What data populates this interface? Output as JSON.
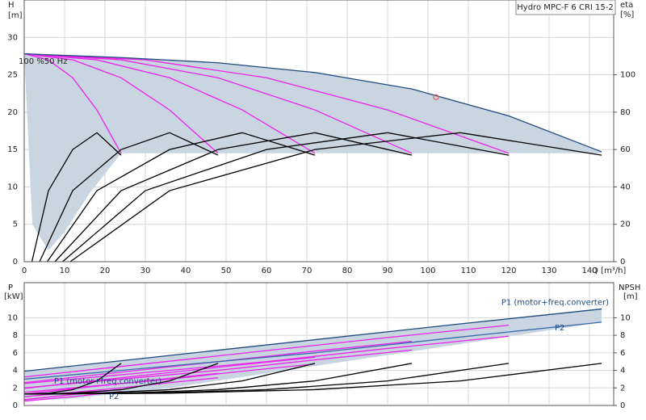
{
  "chart_data": [
    {
      "type": "line",
      "title": "Hydro MPC-F 6 CRI 15-2",
      "y_label": "H",
      "y_unit": "[m]",
      "y2_label": "eta",
      "y2_unit": "[%]",
      "x_label": "Q [m³/h]",
      "annotation": "100 %50 Hz",
      "xlim": [
        0,
        146
      ],
      "xticks": [
        0,
        10,
        20,
        30,
        40,
        50,
        60,
        70,
        80,
        90,
        100,
        110,
        120,
        130,
        140
      ],
      "ylim": [
        0,
        35
      ],
      "yticks": [
        0,
        5,
        10,
        15,
        20,
        25,
        30
      ],
      "y2lim": [
        0,
        140
      ],
      "y2ticks": [
        0,
        20,
        40,
        60,
        80,
        100
      ],
      "grid": true,
      "series": [
        {
          "kind": "area",
          "color": "#c9d5e1",
          "x": [
            0,
            24,
            48,
            72,
            96,
            120,
            143,
            143,
            24,
            16,
            10,
            6,
            2
          ],
          "values": [
            27.8,
            27.3,
            26.6,
            25.3,
            23.1,
            19.5,
            14.7,
            14.5,
            14.5,
            9,
            4,
            1.5,
            5
          ]
        },
        {
          "kind": "line",
          "color": "#ee22ee",
          "x": [
            0,
            6,
            12,
            18,
            24
          ],
          "values": [
            27.8,
            27.0,
            24.6,
            20.3,
            14.5
          ]
        },
        {
          "kind": "line",
          "color": "#ee22ee",
          "x": [
            0,
            12,
            24,
            36,
            48
          ],
          "values": [
            27.8,
            27.0,
            24.6,
            20.3,
            14.5
          ]
        },
        {
          "kind": "line",
          "color": "#ee22ee",
          "x": [
            0,
            18,
            36,
            54,
            72
          ],
          "values": [
            27.8,
            27.0,
            24.6,
            20.3,
            14.5
          ]
        },
        {
          "kind": "line",
          "color": "#ee22ee",
          "x": [
            0,
            24,
            48,
            72,
            96
          ],
          "values": [
            27.8,
            27.0,
            24.6,
            20.3,
            14.5
          ]
        },
        {
          "kind": "line",
          "color": "#ee22ee",
          "x": [
            0,
            30,
            60,
            90,
            120
          ],
          "values": [
            27.8,
            27.0,
            24.6,
            20.3,
            14.5
          ]
        },
        {
          "kind": "line",
          "color": "#1f4a7e",
          "x": [
            0,
            24,
            48,
            72,
            96,
            120,
            143
          ],
          "values": [
            27.8,
            27.3,
            26.6,
            25.3,
            23.1,
            19.5,
            14.7
          ]
        },
        {
          "kind": "line",
          "axis": "y2",
          "color": "#000000",
          "x": [
            1.9,
            6,
            12,
            18,
            24
          ],
          "values": [
            0,
            38,
            60,
            69,
            57
          ]
        },
        {
          "kind": "line",
          "axis": "y2",
          "color": "#000000",
          "x": [
            3.8,
            12,
            24,
            36,
            48
          ],
          "values": [
            0,
            38,
            60,
            69,
            57
          ]
        },
        {
          "kind": "line",
          "axis": "y2",
          "color": "#000000",
          "x": [
            5.7,
            18,
            36,
            54,
            72
          ],
          "values": [
            0,
            38,
            60,
            69,
            57
          ]
        },
        {
          "kind": "line",
          "axis": "y2",
          "color": "#000000",
          "x": [
            7.6,
            24,
            48,
            72,
            96
          ],
          "values": [
            0,
            38,
            60,
            69,
            57
          ]
        },
        {
          "kind": "line",
          "axis": "y2",
          "color": "#000000",
          "x": [
            9.5,
            30,
            60,
            90,
            120
          ],
          "values": [
            0,
            38,
            60,
            69,
            57
          ]
        },
        {
          "kind": "line",
          "axis": "y2",
          "color": "#000000",
          "x": [
            11.4,
            36,
            72,
            108,
            143
          ],
          "values": [
            0,
            38,
            60,
            69,
            57
          ]
        },
        {
          "kind": "point",
          "color": "#e06060",
          "x": [
            102
          ],
          "values": [
            22
          ]
        }
      ]
    },
    {
      "type": "line",
      "y_label": "P",
      "y_unit": "[kW]",
      "y2_label": "NPSH",
      "y2_unit": "[m]",
      "ylim": [
        0,
        14
      ],
      "yticks": [
        0,
        2,
        4,
        6,
        8,
        10
      ],
      "y2lim": [
        0,
        14
      ],
      "y2ticks": [
        0,
        2,
        4,
        6,
        8,
        10
      ],
      "grid": true,
      "series": [
        {
          "kind": "area",
          "color": "#c9d5e1",
          "x": [
            0,
            36,
            72,
            108,
            143,
            143,
            108,
            72,
            36,
            12,
            0
          ],
          "values": [
            3.9,
            5.7,
            7.5,
            9.3,
            11.0,
            9.5,
            7.0,
            4.5,
            2.0,
            0.8,
            0.5
          ]
        },
        {
          "kind": "line",
          "name": "P1 (motor+freq.converter)",
          "color": "#ee22ee",
          "x": [
            0,
            6,
            12,
            18,
            24
          ],
          "values": [
            0.65,
            0.95,
            1.25,
            1.55,
            1.83
          ]
        },
        {
          "kind": "line",
          "color": "#ee22ee",
          "x": [
            0,
            12,
            24,
            36,
            48
          ],
          "values": [
            1.3,
            1.9,
            2.5,
            3.1,
            3.66
          ]
        },
        {
          "kind": "line",
          "color": "#ee22ee",
          "x": [
            0,
            18,
            36,
            54,
            72
          ],
          "values": [
            1.95,
            2.85,
            3.75,
            4.65,
            5.49
          ]
        },
        {
          "kind": "line",
          "color": "#ee22ee",
          "x": [
            0,
            24,
            48,
            72,
            96
          ],
          "values": [
            2.6,
            3.8,
            5.0,
            6.2,
            7.32
          ]
        },
        {
          "kind": "line",
          "color": "#ee22ee",
          "x": [
            0,
            30,
            60,
            90,
            120
          ],
          "values": [
            3.25,
            4.75,
            6.25,
            7.75,
            9.15
          ]
        },
        {
          "kind": "line",
          "name": "P2",
          "color": "#ee22ee",
          "x": [
            0,
            6,
            12,
            18,
            24
          ],
          "values": [
            0.5,
            0.75,
            1.0,
            1.3,
            1.58
          ]
        },
        {
          "kind": "line",
          "color": "#ee22ee",
          "x": [
            0,
            12,
            24,
            36,
            48
          ],
          "values": [
            1.0,
            1.5,
            2.0,
            2.6,
            3.16
          ]
        },
        {
          "kind": "line",
          "color": "#ee22ee",
          "x": [
            0,
            18,
            36,
            54,
            72
          ],
          "values": [
            1.5,
            2.25,
            3.0,
            3.9,
            4.74
          ]
        },
        {
          "kind": "line",
          "color": "#ee22ee",
          "x": [
            0,
            24,
            48,
            72,
            96
          ],
          "values": [
            2.0,
            3.0,
            4.0,
            5.2,
            6.32
          ]
        },
        {
          "kind": "line",
          "color": "#ee22ee",
          "x": [
            0,
            30,
            60,
            90,
            120
          ],
          "values": [
            2.5,
            3.75,
            5.0,
            6.5,
            7.9
          ]
        },
        {
          "kind": "line",
          "name": "P1 (motor+freq.converter)",
          "color": "#1f4a7e",
          "x": [
            0,
            36,
            72,
            108,
            143
          ],
          "values": [
            3.9,
            5.7,
            7.5,
            9.3,
            11.0
          ]
        },
        {
          "kind": "line",
          "name": "P2",
          "color": "#3a6aa8",
          "x": [
            0,
            36,
            72,
            108,
            143
          ],
          "values": [
            3.0,
            4.5,
            6.0,
            7.8,
            9.5
          ]
        },
        {
          "kind": "line",
          "axis": "y2",
          "color": "#000000",
          "x": [
            0,
            6,
            12,
            18,
            24
          ],
          "values": [
            1.3,
            1.4,
            1.8,
            2.8,
            4.8
          ]
        },
        {
          "kind": "line",
          "axis": "y2",
          "color": "#000000",
          "x": [
            0,
            12,
            24,
            36,
            48
          ],
          "values": [
            1.3,
            1.4,
            1.8,
            2.8,
            4.8
          ]
        },
        {
          "kind": "line",
          "axis": "y2",
          "color": "#000000",
          "x": [
            0,
            18,
            36,
            54,
            72
          ],
          "values": [
            1.3,
            1.4,
            1.8,
            2.8,
            4.8
          ]
        },
        {
          "kind": "line",
          "axis": "y2",
          "color": "#000000",
          "x": [
            0,
            24,
            48,
            72,
            96
          ],
          "values": [
            1.3,
            1.4,
            1.8,
            2.8,
            4.8
          ]
        },
        {
          "kind": "line",
          "axis": "y2",
          "color": "#000000",
          "x": [
            0,
            30,
            60,
            90,
            120
          ],
          "values": [
            1.3,
            1.4,
            1.8,
            2.8,
            4.8
          ]
        },
        {
          "kind": "line",
          "axis": "y2",
          "color": "#000000",
          "x": [
            0,
            36,
            72,
            108,
            143
          ],
          "values": [
            1.3,
            1.4,
            1.8,
            2.8,
            4.8
          ]
        }
      ]
    }
  ]
}
